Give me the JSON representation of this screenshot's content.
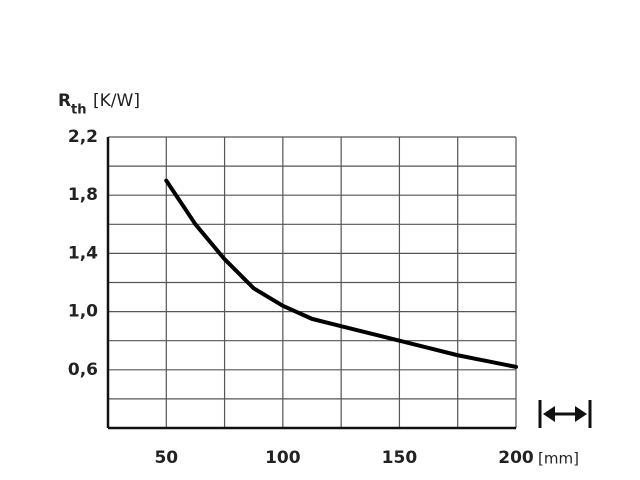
{
  "chart_data": {
    "type": "line",
    "y_label": "R",
    "y_label_sub": "th",
    "y_label_unit": "[K/W]",
    "x_label_unit": "[mm]",
    "x": [
      50,
      62.5,
      75,
      87.5,
      100,
      112.5,
      125,
      137.5,
      150,
      162.5,
      175,
      187.5,
      200
    ],
    "series": [
      {
        "color": "#000000",
        "values": [
          1.9,
          1.6,
          1.36,
          1.16,
          1.04,
          0.95,
          0.9,
          0.85,
          0.8,
          0.75,
          0.7,
          0.66,
          0.62
        ]
      }
    ],
    "xlim": [
      25,
      200
    ],
    "ylim": [
      0.2,
      2.2
    ],
    "xticks": [
      50,
      100,
      150,
      200
    ],
    "yticks": [
      {
        "value": 0.6,
        "label": "0,6"
      },
      {
        "value": 1.0,
        "label": "1,0"
      },
      {
        "value": 1.4,
        "label": "1,4"
      },
      {
        "value": 1.8,
        "label": "1,8"
      },
      {
        "value": 2.2,
        "label": "2,2"
      }
    ],
    "xgrid": [
      25,
      50,
      75,
      100,
      125,
      150,
      175,
      200
    ],
    "ygrid": [
      0.2,
      0.4,
      0.6,
      0.8,
      1.0,
      1.2,
      1.4,
      1.6,
      1.8,
      2.0,
      2.2
    ],
    "grid": true
  }
}
